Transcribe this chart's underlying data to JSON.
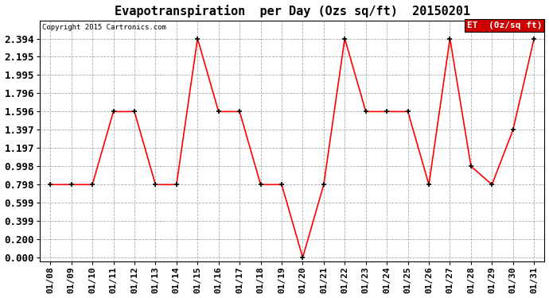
{
  "title": "Evapotranspiration  per Day (Ozs sq/ft)  20150201",
  "copyright_text": "Copyright 2015 Cartronics.com",
  "legend_label": "ET  (0z/sq ft)",
  "dates": [
    "01/08",
    "01/09",
    "01/10",
    "01/11",
    "01/12",
    "01/13",
    "01/14",
    "01/15",
    "01/16",
    "01/17",
    "01/18",
    "01/19",
    "01/20",
    "01/21",
    "01/22",
    "01/23",
    "01/24",
    "01/25",
    "01/26",
    "01/27",
    "01/28",
    "01/29",
    "01/30",
    "01/31"
  ],
  "values": [
    0.798,
    0.798,
    0.798,
    1.596,
    1.596,
    0.798,
    0.798,
    2.394,
    1.596,
    1.596,
    0.798,
    0.798,
    0.0,
    0.798,
    2.394,
    1.596,
    1.596,
    1.596,
    0.798,
    2.394,
    0.998,
    0.798,
    1.397,
    2.394
  ],
  "line_color": "red",
  "marker_color": "black",
  "background_color": "#ffffff",
  "grid_color": "#aaaaaa",
  "ylim_max": 2.594,
  "yticks": [
    0.0,
    0.2,
    0.399,
    0.599,
    0.798,
    0.998,
    1.197,
    1.397,
    1.596,
    1.796,
    1.995,
    2.195,
    2.394
  ],
  "title_fontsize": 11,
  "tick_fontsize": 8,
  "ytick_fontsize": 9,
  "legend_bg": "#cc0000",
  "legend_text_color": "white",
  "legend_fontsize": 8
}
